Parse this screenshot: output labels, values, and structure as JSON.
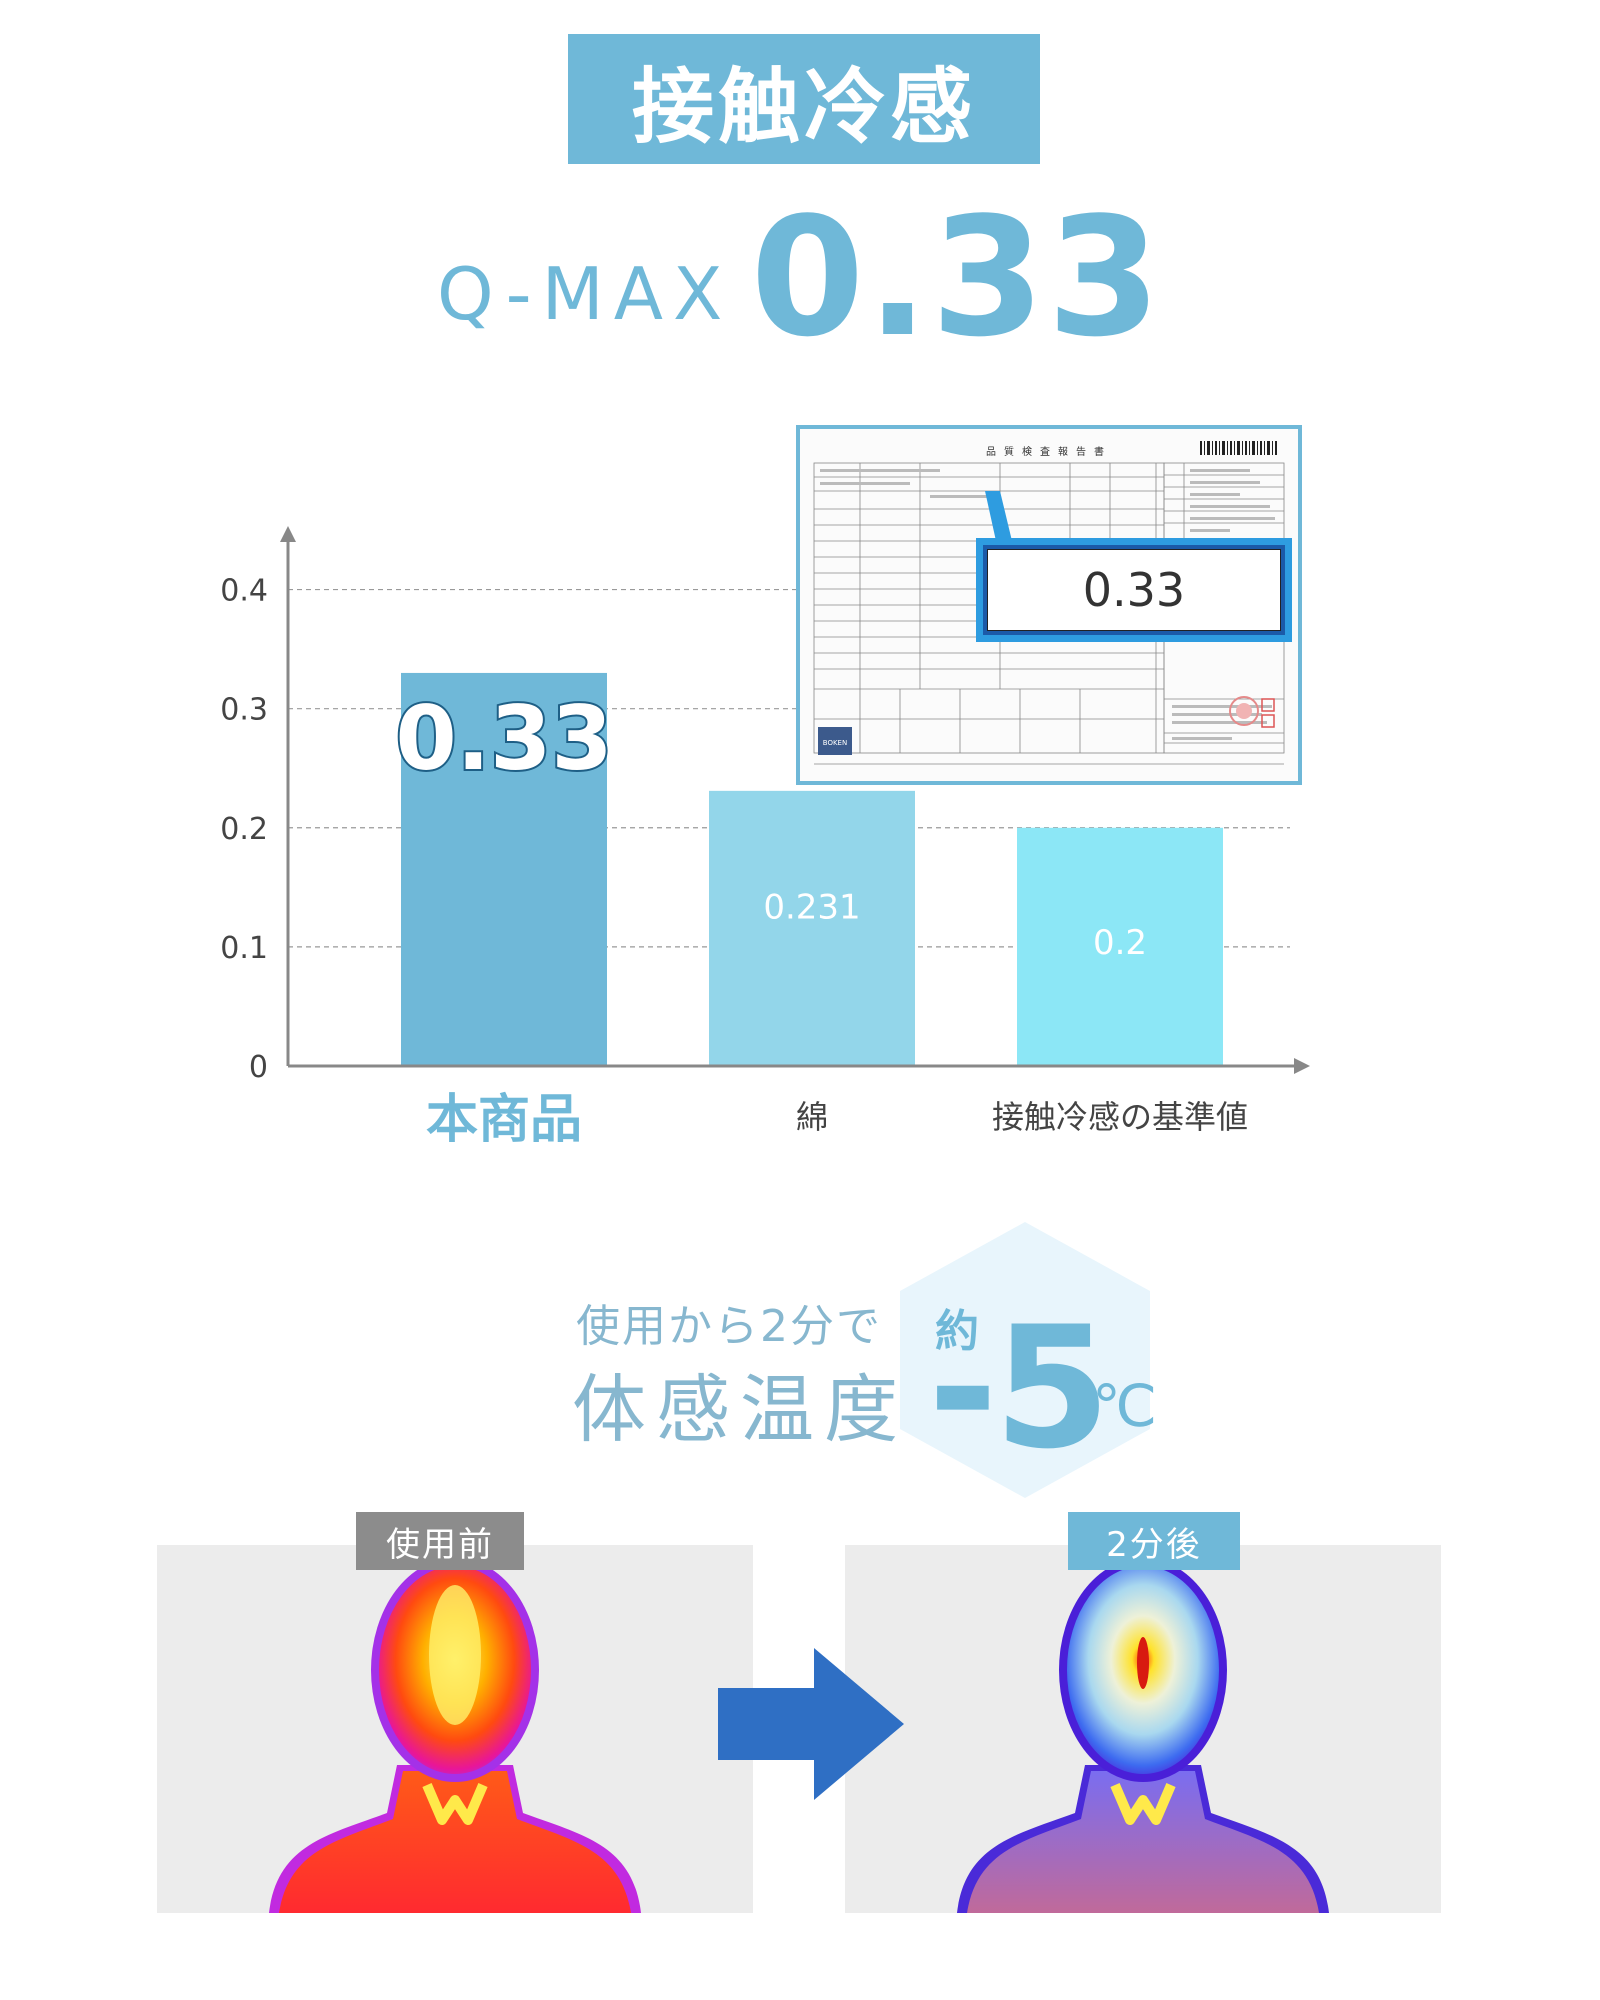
{
  "header": {
    "title": "接触冷感",
    "qmax_label": "Q-MAX",
    "qmax_value": "0.33"
  },
  "chart_data": {
    "type": "bar",
    "categories": [
      "本商品",
      "綿",
      "接触冷感の基準値"
    ],
    "values": [
      0.33,
      0.231,
      0.2
    ],
    "data_labels": [
      "0.33",
      "0.231",
      "0.2"
    ],
    "yticks": [
      "0",
      "0.1",
      "0.2",
      "0.3",
      "0.4"
    ],
    "ylim": [
      0,
      0.45
    ],
    "grid": true,
    "colors": [
      "#6fb8d8",
      "#93d6ea",
      "#8ce7f6"
    ],
    "highlight_color": "#6fb8d8"
  },
  "report": {
    "value": "0.33",
    "logo_text": "BOKEN"
  },
  "temperature": {
    "sub": "使用から2分で",
    "main": "体感温度",
    "approx": "約",
    "value": "-5",
    "unit": "℃"
  },
  "comparison": {
    "before_label": "使用前",
    "after_label": "2分後"
  }
}
